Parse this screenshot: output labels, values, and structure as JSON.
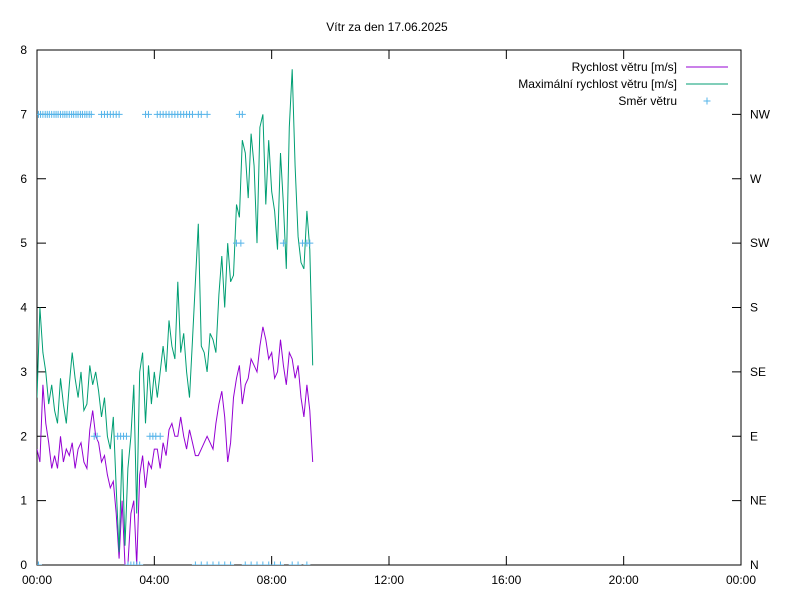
{
  "chart_data": {
    "type": "line",
    "title": "Vítr za den 17.06.2025",
    "xlabel": "",
    "ylabel": "",
    "x_ticks": [
      "00:00",
      "04:00",
      "08:00",
      "12:00",
      "16:00",
      "20:00",
      "00:00"
    ],
    "x_range_hours": [
      0,
      24
    ],
    "ylim": [
      0,
      8
    ],
    "y_ticks": [
      0,
      1,
      2,
      3,
      4,
      5,
      6,
      7,
      8
    ],
    "y2_ticks": [
      "N",
      "NE",
      "E",
      "SE",
      "S",
      "SW",
      "W",
      "NW"
    ],
    "grid": false,
    "legend_position": "top-right",
    "series": [
      {
        "name": "Rychlost větru [m/s]",
        "type": "line",
        "color": "#9400d3",
        "x": [
          0.0,
          0.1,
          0.2,
          0.3,
          0.4,
          0.5,
          0.6,
          0.7,
          0.8,
          0.9,
          1.0,
          1.1,
          1.2,
          1.3,
          1.4,
          1.5,
          1.6,
          1.7,
          1.8,
          1.9,
          2.0,
          2.1,
          2.2,
          2.3,
          2.4,
          2.5,
          2.6,
          2.7,
          2.8,
          2.9,
          3.0,
          3.1,
          3.2,
          3.3,
          3.4,
          3.5,
          3.6,
          3.7,
          3.8,
          3.9,
          4.0,
          4.1,
          4.2,
          4.3,
          4.4,
          4.5,
          4.6,
          4.7,
          4.8,
          4.9,
          5.0,
          5.1,
          5.2,
          5.3,
          5.4,
          5.5,
          5.6,
          5.7,
          5.8,
          5.9,
          6.0,
          6.1,
          6.2,
          6.3,
          6.4,
          6.5,
          6.6,
          6.7,
          6.8,
          6.9,
          7.0,
          7.1,
          7.2,
          7.3,
          7.4,
          7.5,
          7.6,
          7.7,
          7.8,
          7.9,
          8.0,
          8.1,
          8.2,
          8.3,
          8.4,
          8.5,
          8.6,
          8.7,
          8.8,
          8.9,
          9.0,
          9.1,
          9.2,
          9.3,
          9.4
        ],
        "values": [
          1.8,
          1.6,
          2.8,
          2.2,
          1.9,
          1.5,
          1.7,
          1.5,
          2.0,
          1.6,
          1.8,
          1.7,
          1.9,
          1.5,
          1.8,
          1.9,
          1.6,
          1.5,
          2.1,
          2.4,
          2.0,
          1.9,
          1.6,
          1.7,
          1.4,
          1.2,
          1.3,
          0.8,
          0.1,
          1.0,
          0.0,
          0.0,
          0.8,
          1.0,
          0.0,
          1.4,
          1.7,
          1.2,
          1.6,
          1.5,
          1.8,
          1.8,
          1.5,
          1.9,
          1.7,
          2.1,
          2.2,
          2.0,
          2.0,
          2.3,
          2.0,
          1.8,
          2.1,
          1.9,
          1.7,
          1.7,
          1.8,
          1.9,
          2.0,
          1.9,
          1.8,
          2.2,
          2.5,
          2.7,
          2.3,
          1.6,
          1.9,
          2.6,
          2.9,
          3.1,
          2.5,
          2.8,
          2.9,
          3.2,
          3.1,
          3.0,
          3.4,
          3.7,
          3.5,
          3.2,
          3.3,
          2.9,
          3.0,
          3.5,
          3.1,
          2.8,
          3.3,
          3.2,
          2.9,
          3.1,
          2.6,
          2.3,
          2.8,
          2.4,
          1.6
        ]
      },
      {
        "name": "Maximální rychlost větru [m/s]",
        "type": "line",
        "color": "#009e73",
        "x": [
          0.0,
          0.1,
          0.2,
          0.3,
          0.4,
          0.5,
          0.6,
          0.7,
          0.8,
          0.9,
          1.0,
          1.1,
          1.2,
          1.3,
          1.4,
          1.5,
          1.6,
          1.7,
          1.8,
          1.9,
          2.0,
          2.1,
          2.2,
          2.3,
          2.4,
          2.5,
          2.6,
          2.7,
          2.8,
          2.9,
          3.0,
          3.1,
          3.2,
          3.3,
          3.4,
          3.5,
          3.6,
          3.7,
          3.8,
          3.9,
          4.0,
          4.1,
          4.2,
          4.3,
          4.4,
          4.5,
          4.6,
          4.7,
          4.8,
          4.9,
          5.0,
          5.1,
          5.2,
          5.3,
          5.4,
          5.5,
          5.6,
          5.7,
          5.8,
          5.9,
          6.0,
          6.1,
          6.2,
          6.3,
          6.4,
          6.5,
          6.6,
          6.7,
          6.8,
          6.9,
          7.0,
          7.1,
          7.2,
          7.3,
          7.4,
          7.5,
          7.6,
          7.7,
          7.8,
          7.9,
          8.0,
          8.1,
          8.2,
          8.3,
          8.4,
          8.5,
          8.6,
          8.7,
          8.8,
          8.9,
          9.0,
          9.1,
          9.2,
          9.3,
          9.4
        ],
        "values": [
          2.6,
          4.0,
          3.3,
          3.0,
          2.5,
          2.8,
          2.4,
          2.2,
          2.9,
          2.5,
          2.2,
          2.8,
          3.3,
          2.9,
          2.6,
          3.0,
          2.4,
          2.5,
          3.1,
          2.8,
          3.0,
          2.7,
          2.3,
          2.6,
          2.0,
          1.8,
          2.3,
          1.2,
          0.2,
          1.8,
          0.3,
          1.5,
          2.0,
          2.8,
          0.8,
          3.0,
          3.3,
          2.2,
          3.1,
          2.5,
          3.0,
          2.6,
          3.0,
          3.4,
          3.0,
          3.8,
          3.4,
          3.2,
          4.4,
          3.3,
          3.6,
          3.0,
          2.6,
          3.5,
          4.4,
          5.3,
          3.4,
          3.3,
          3.0,
          3.6,
          3.5,
          3.3,
          4.2,
          4.8,
          4.0,
          5.0,
          4.4,
          4.5,
          5.6,
          5.4,
          6.6,
          6.4,
          5.7,
          6.7,
          6.2,
          5.0,
          6.8,
          7.0,
          5.6,
          6.6,
          5.8,
          5.5,
          4.9,
          6.4,
          5.6,
          4.6,
          6.8,
          7.7,
          6.2,
          5.1,
          4.7,
          4.6,
          5.5,
          4.9,
          3.1
        ]
      },
      {
        "name": "Směr větru",
        "type": "points",
        "color": "#56b4e9",
        "x": [
          0.05,
          0.12,
          0.2,
          0.28,
          0.35,
          0.42,
          0.5,
          0.58,
          0.65,
          0.72,
          0.8,
          0.88,
          0.95,
          1.02,
          1.1,
          1.18,
          1.25,
          1.33,
          1.4,
          1.48,
          1.55,
          1.63,
          1.7,
          1.78,
          1.85,
          2.2,
          2.3,
          2.4,
          2.5,
          2.6,
          2.7,
          2.8,
          3.7,
          3.8,
          4.1,
          4.2,
          4.3,
          4.4,
          4.5,
          4.6,
          4.7,
          4.8,
          4.9,
          5.0,
          5.1,
          5.2,
          5.3,
          5.5,
          5.6,
          5.8,
          6.9,
          7.0,
          1.95,
          2.05,
          2.75,
          2.85,
          2.95,
          3.05,
          3.85,
          3.95,
          4.05,
          4.2,
          6.8,
          6.95,
          8.4,
          9.05,
          9.2,
          9.3,
          0.05,
          3.1,
          3.2,
          3.3,
          3.4,
          3.5,
          5.4,
          5.6,
          5.8,
          6.0,
          6.2,
          6.4,
          6.6,
          7.1,
          7.3,
          7.5,
          7.7,
          7.9,
          8.1,
          8.3,
          8.7,
          8.9,
          9.2
        ],
        "values": [
          "NW",
          "NW",
          "NW",
          "NW",
          "NW",
          "NW",
          "NW",
          "NW",
          "NW",
          "NW",
          "NW",
          "NW",
          "NW",
          "NW",
          "NW",
          "NW",
          "NW",
          "NW",
          "NW",
          "NW",
          "NW",
          "NW",
          "NW",
          "NW",
          "NW",
          "NW",
          "NW",
          "NW",
          "NW",
          "NW",
          "NW",
          "NW",
          "NW",
          "NW",
          "NW",
          "NW",
          "NW",
          "NW",
          "NW",
          "NW",
          "NW",
          "NW",
          "NW",
          "NW",
          "NW",
          "NW",
          "NW",
          "NW",
          "NW",
          "NW",
          "NW",
          "NW",
          "E",
          "E",
          "E",
          "E",
          "E",
          "E",
          "E",
          "E",
          "E",
          "E",
          "SW",
          "SW",
          "SW",
          "SW",
          "SW",
          "SW",
          "N",
          "N",
          "N",
          "N",
          "N",
          "N",
          "N",
          "N",
          "N",
          "N",
          "N",
          "N",
          "N",
          "N",
          "N",
          "N",
          "N",
          "N",
          "N",
          "N",
          "N",
          "N",
          "N"
        ]
      }
    ]
  }
}
